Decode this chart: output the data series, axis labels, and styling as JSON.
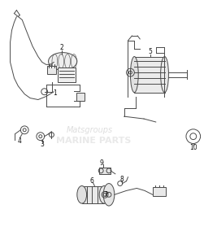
{
  "bg_color": "#ffffff",
  "fig_width": 2.67,
  "fig_height": 3.0,
  "dpi": 100,
  "watermark_text1": "Matsgroups",
  "watermark_text2": "MARINE PARTS",
  "watermark_color": "#c8c8c8",
  "line_color": "#4a4a4a",
  "label_color": "#111111",
  "label_fontsize": 5.5
}
